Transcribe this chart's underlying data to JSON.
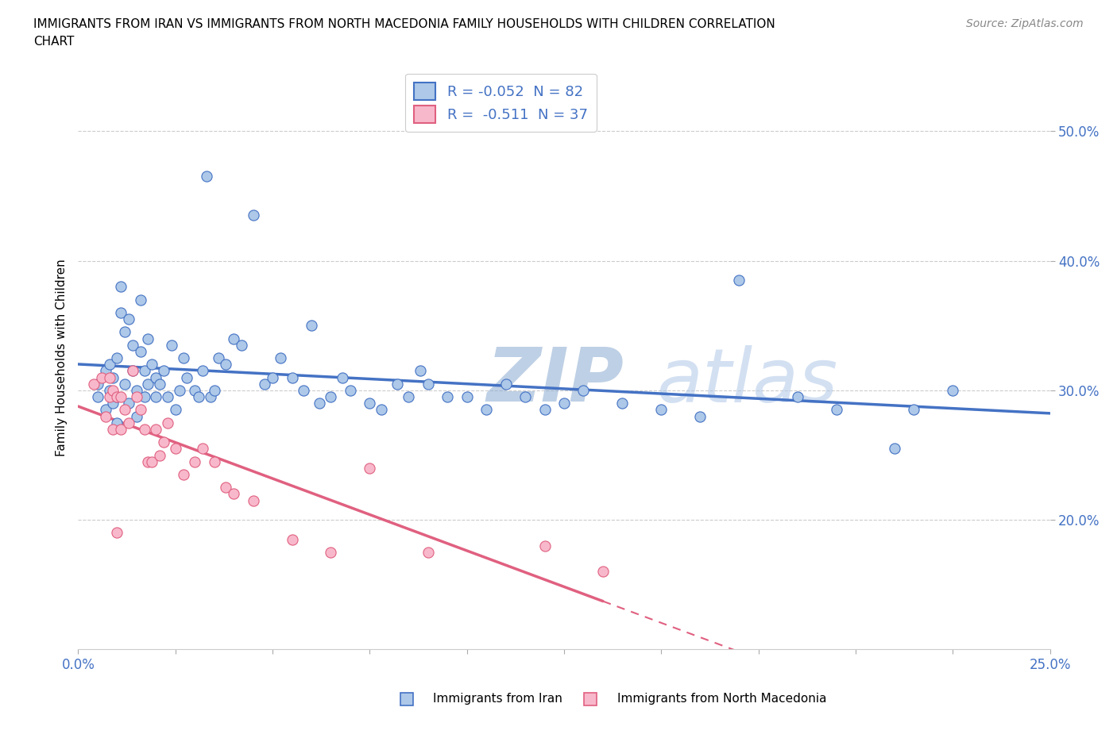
{
  "title_line1": "IMMIGRANTS FROM IRAN VS IMMIGRANTS FROM NORTH MACEDONIA FAMILY HOUSEHOLDS WITH CHILDREN CORRELATION",
  "title_line2": "CHART",
  "source": "Source: ZipAtlas.com",
  "ylabel": "Family Households with Children",
  "xlim": [
    0.0,
    0.25
  ],
  "ylim": [
    0.1,
    0.55
  ],
  "ytick_labels": [
    "20.0%",
    "30.0%",
    "40.0%",
    "50.0%"
  ],
  "ytick_values": [
    0.2,
    0.3,
    0.4,
    0.5
  ],
  "xtick_values": [
    0.0,
    0.025,
    0.05,
    0.075,
    0.1,
    0.125,
    0.15,
    0.175,
    0.2,
    0.225,
    0.25
  ],
  "iran_R": -0.052,
  "iran_N": 82,
  "macedon_R": -0.511,
  "macedon_N": 37,
  "legend_label_iran": "Immigrants from Iran",
  "legend_label_macedon": "Immigrants from North Macedonia",
  "iran_color": "#adc8e8",
  "iran_line_color": "#4472c4",
  "macedon_color": "#f8b8cb",
  "macedon_line_color": "#e06080",
  "watermark_color": "#c8d8f0",
  "iran_x": [
    0.005,
    0.005,
    0.007,
    0.007,
    0.008,
    0.008,
    0.009,
    0.009,
    0.01,
    0.01,
    0.01,
    0.011,
    0.011,
    0.012,
    0.012,
    0.013,
    0.013,
    0.014,
    0.014,
    0.015,
    0.015,
    0.016,
    0.016,
    0.017,
    0.017,
    0.018,
    0.018,
    0.019,
    0.02,
    0.02,
    0.021,
    0.022,
    0.023,
    0.024,
    0.025,
    0.026,
    0.027,
    0.028,
    0.03,
    0.031,
    0.032,
    0.033,
    0.034,
    0.035,
    0.036,
    0.038,
    0.04,
    0.042,
    0.045,
    0.048,
    0.05,
    0.052,
    0.055,
    0.058,
    0.06,
    0.062,
    0.065,
    0.068,
    0.07,
    0.075,
    0.078,
    0.082,
    0.085,
    0.088,
    0.09,
    0.095,
    0.1,
    0.105,
    0.11,
    0.115,
    0.12,
    0.125,
    0.13,
    0.14,
    0.15,
    0.16,
    0.17,
    0.185,
    0.195,
    0.21,
    0.215,
    0.225
  ],
  "iran_y": [
    0.305,
    0.295,
    0.315,
    0.285,
    0.3,
    0.32,
    0.31,
    0.29,
    0.325,
    0.295,
    0.275,
    0.36,
    0.38,
    0.305,
    0.345,
    0.355,
    0.29,
    0.335,
    0.315,
    0.3,
    0.28,
    0.33,
    0.37,
    0.315,
    0.295,
    0.305,
    0.34,
    0.32,
    0.31,
    0.295,
    0.305,
    0.315,
    0.295,
    0.335,
    0.285,
    0.3,
    0.325,
    0.31,
    0.3,
    0.295,
    0.315,
    0.465,
    0.295,
    0.3,
    0.325,
    0.32,
    0.34,
    0.335,
    0.435,
    0.305,
    0.31,
    0.325,
    0.31,
    0.3,
    0.35,
    0.29,
    0.295,
    0.31,
    0.3,
    0.29,
    0.285,
    0.305,
    0.295,
    0.315,
    0.305,
    0.295,
    0.295,
    0.285,
    0.305,
    0.295,
    0.285,
    0.29,
    0.3,
    0.29,
    0.285,
    0.28,
    0.385,
    0.295,
    0.285,
    0.255,
    0.285,
    0.3
  ],
  "macedon_x": [
    0.004,
    0.006,
    0.007,
    0.008,
    0.008,
    0.009,
    0.009,
    0.01,
    0.01,
    0.011,
    0.011,
    0.012,
    0.013,
    0.014,
    0.015,
    0.016,
    0.017,
    0.018,
    0.019,
    0.02,
    0.021,
    0.022,
    0.023,
    0.025,
    0.027,
    0.03,
    0.032,
    0.035,
    0.038,
    0.04,
    0.045,
    0.055,
    0.065,
    0.075,
    0.09,
    0.12,
    0.135
  ],
  "macedon_y": [
    0.305,
    0.31,
    0.28,
    0.295,
    0.31,
    0.27,
    0.3,
    0.295,
    0.19,
    0.295,
    0.27,
    0.285,
    0.275,
    0.315,
    0.295,
    0.285,
    0.27,
    0.245,
    0.245,
    0.27,
    0.25,
    0.26,
    0.275,
    0.255,
    0.235,
    0.245,
    0.255,
    0.245,
    0.225,
    0.22,
    0.215,
    0.185,
    0.175,
    0.24,
    0.175,
    0.18,
    0.16
  ]
}
